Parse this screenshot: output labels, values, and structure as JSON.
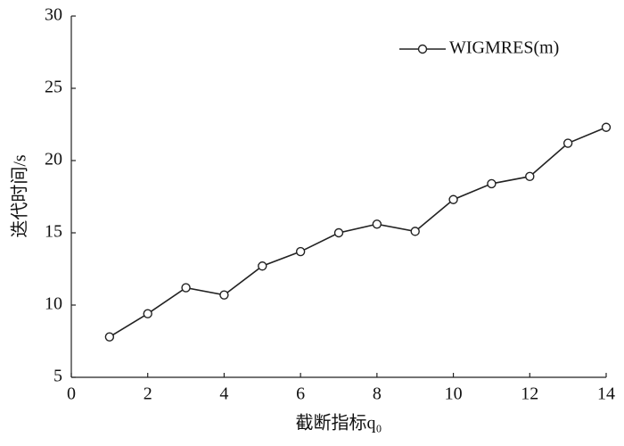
{
  "chart_data": {
    "type": "line",
    "x_label": "截断指标q₀",
    "y_label": "迭代时间/s",
    "x": [
      1,
      2,
      3,
      4,
      5,
      6,
      7,
      8,
      9,
      10,
      11,
      12,
      13,
      14
    ],
    "series": [
      {
        "name": "WIGMRES(m)",
        "color": "#222222",
        "values": [
          7.8,
          9.4,
          11.2,
          10.7,
          12.7,
          13.7,
          15.0,
          15.6,
          15.1,
          17.3,
          18.4,
          18.9,
          21.2,
          22.3
        ]
      }
    ],
    "xlim": [
      0,
      14
    ],
    "xticks": [
      0,
      2,
      4,
      6,
      8,
      10,
      12,
      14
    ],
    "ylim": [
      5,
      30
    ],
    "yticks": [
      5,
      10,
      15,
      20,
      25,
      30
    ],
    "grid": false,
    "legend": "top-right"
  }
}
